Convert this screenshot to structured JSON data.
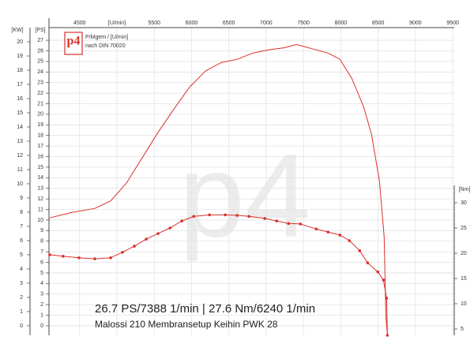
{
  "chart_data": {
    "type": "line",
    "title": "P/Mgem / [U/min]",
    "subtitle": "nach DIN 70020",
    "logo": "p4",
    "watermark": "p4",
    "y3_label": "[KW]",
    "annotations": [
      "26.7 PS/7388 1/min | 27.6 Nm/6240 1/min",
      "Malossi 210 Membransetup Keihin PWK 28"
    ],
    "xlim": [
      4090,
      9520
    ],
    "xticks": [
      4500,
      {
        "value": 5000,
        "label": "[U/min]"
      },
      5500,
      6000,
      6500,
      7000,
      7500,
      8000,
      8500,
      9000,
      9500
    ],
    "ylim": [
      -0.9,
      28.2
    ],
    "yticks": [
      0,
      1,
      2,
      3,
      4,
      5,
      6,
      7,
      8,
      9,
      10,
      11,
      12,
      13,
      14,
      15,
      16,
      17,
      18,
      19,
      20,
      21,
      22,
      23,
      24,
      25,
      26,
      27
    ],
    "y2lim": [
      3.75,
      64.7
    ],
    "y2ticks": [
      5,
      10,
      15,
      20,
      25,
      30
    ],
    "y3lim": [
      -0.67,
      21
    ],
    "y3ticks": [
      0,
      1,
      2,
      3,
      4,
      5,
      6,
      7,
      8,
      9,
      10,
      11,
      12,
      13,
      14,
      15,
      16,
      17,
      18,
      19,
      20
    ],
    "grid": true,
    "series": [
      {
        "name": "[PS]",
        "color": "#d9312b",
        "markers": false,
        "x": [
          4100,
          4387,
          4704,
          4916,
          5128,
          5340,
          5552,
          5764,
          5976,
          6188,
          6400,
          6611,
          6823,
          7035,
          7247,
          7406,
          7617,
          7829,
          7988,
          8147,
          8306,
          8412,
          8518,
          8581,
          8603,
          8624
        ],
        "values": [
          10.2,
          10.7,
          11.1,
          11.8,
          13.5,
          15.9,
          18.3,
          20.5,
          22.6,
          24.1,
          24.9,
          25.2,
          25.8,
          26.1,
          26.3,
          26.6,
          26.2,
          25.8,
          25.2,
          23.4,
          20.7,
          18.1,
          13.7,
          8.4,
          1.0,
          -0.9
        ]
      },
      {
        "name": "[Nm]",
        "color": "#d9312b",
        "markers": true,
        "axis": "y2",
        "x": [
          4100,
          4280,
          4492,
          4704,
          4916,
          5075,
          5234,
          5393,
          5552,
          5711,
          5870,
          6029,
          6240,
          6452,
          6611,
          6770,
          6982,
          7141,
          7300,
          7459,
          7671,
          7829,
          7988,
          8115,
          8253,
          8359,
          8497,
          8571,
          8614,
          8624
        ],
        "values": [
          19.7,
          19.4,
          19.1,
          18.9,
          19.1,
          20.2,
          21.4,
          22.8,
          23.9,
          25.0,
          26.4,
          27.3,
          27.6,
          27.6,
          27.5,
          27.3,
          26.9,
          26.4,
          25.9,
          25.8,
          24.8,
          24.2,
          23.6,
          22.5,
          20.5,
          18.1,
          16.3,
          14.7,
          11.1,
          3.75
        ]
      }
    ]
  }
}
